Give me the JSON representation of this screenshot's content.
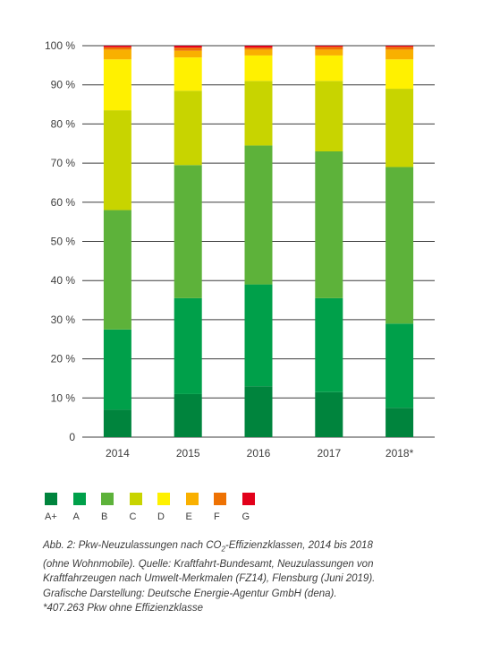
{
  "chart_data": {
    "type": "bar",
    "stacked": true,
    "categories": [
      "2014",
      "2015",
      "2016",
      "2017",
      "2018*"
    ],
    "y_ticks": [
      "100 %",
      "90 %",
      "80 %",
      "70 %",
      "60 %",
      "50 %",
      "40 %",
      "30 %",
      "20 %",
      "10 %",
      "0"
    ],
    "ylim": [
      0,
      100
    ],
    "grid": true,
    "series": [
      {
        "name": "A+",
        "color": "#00843d",
        "values": [
          7,
          11,
          13,
          11.5,
          7.5
        ]
      },
      {
        "name": "A",
        "color": "#00a04a",
        "values": [
          20.5,
          24.5,
          26,
          24,
          21.5
        ]
      },
      {
        "name": "B",
        "color": "#5db23a",
        "values": [
          30.5,
          34,
          35.5,
          37.5,
          40
        ]
      },
      {
        "name": "C",
        "color": "#c8d400",
        "values": [
          25.5,
          19,
          16.5,
          18,
          20
        ]
      },
      {
        "name": "D",
        "color": "#fff100",
        "values": [
          13,
          8.5,
          6.5,
          6.5,
          7.5
        ]
      },
      {
        "name": "E",
        "color": "#f9b000",
        "values": [
          2.5,
          1.7,
          1.5,
          1.5,
          2.5
        ]
      },
      {
        "name": "F",
        "color": "#ee7203",
        "values": [
          0.6,
          0.8,
          0.5,
          0.7,
          0.7
        ]
      },
      {
        "name": "G",
        "color": "#e2001a",
        "values": [
          0.4,
          0.5,
          0.5,
          0.3,
          0.3
        ]
      }
    ]
  },
  "caption": {
    "line1_before": "Abb. 2: Pkw-Neuzulassungen nach CO",
    "line1_sub": "2",
    "line1_after": "-Effizienzklassen, 2014 bis 2018",
    "line2": "(ohne Wohnmobile). Quelle: Kraftfahrt-Bundesamt, Neuzulassungen von",
    "line3": "Kraftfahrzeugen nach Umwelt-Merkmalen (FZ14), Flensburg (Juni 2019).",
    "line4": "Grafische Darstellung: Deutsche Energie-Agentur GmbH (dena).",
    "line5": "*407.263 Pkw ohne Effizienzklasse"
  }
}
